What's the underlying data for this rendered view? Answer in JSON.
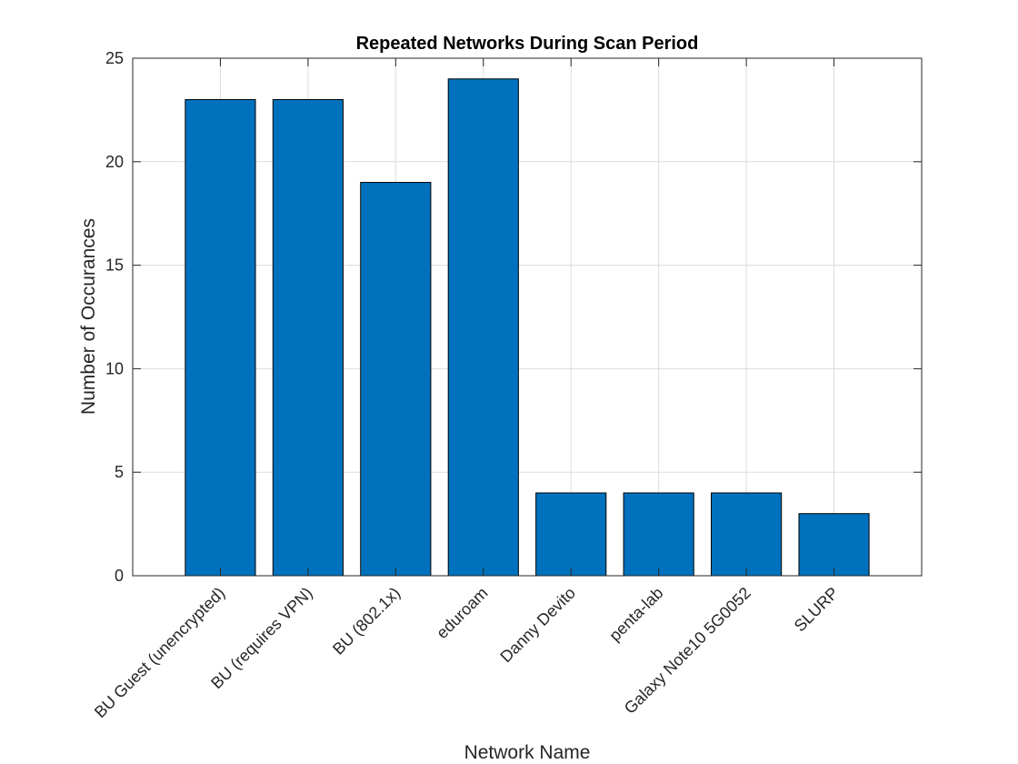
{
  "chart_data": {
    "type": "bar",
    "title": "Repeated Networks During Scan Period",
    "xlabel": "Network Name",
    "ylabel": "Number of Occurances",
    "categories": [
      "BU Guest (unencrypted)",
      "BU (requires VPN)",
      "BU (802.1x)",
      "eduroam",
      "Danny Devito",
      "penta-lab",
      "Galaxy Note10 5G0052",
      "SLURP"
    ],
    "values": [
      23,
      23,
      19,
      24,
      4,
      4,
      4,
      3
    ],
    "ylim": [
      0,
      25
    ],
    "yticks": [
      0,
      5,
      10,
      15,
      20,
      25
    ],
    "grid": true,
    "bar_color": "#0072BD"
  }
}
